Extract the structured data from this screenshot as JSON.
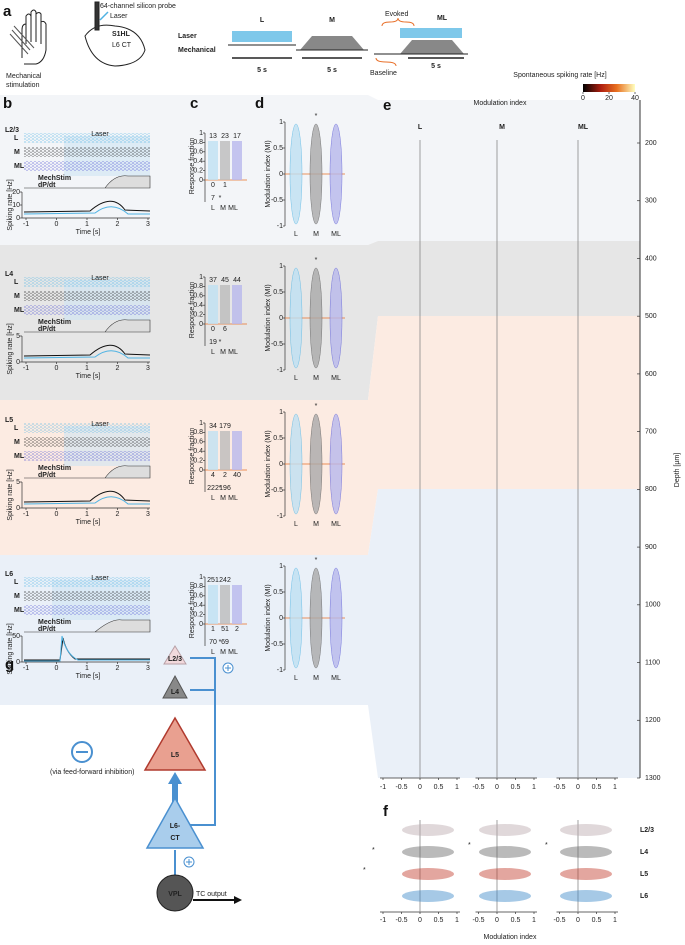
{
  "a": {
    "letter": "a",
    "stim": [
      "Mechanical",
      "stimulation"
    ],
    "probe": "64-channel silicon probe",
    "laser": "Laser",
    "area": "S1HL",
    "ct": "L6 CT",
    "legend": [
      "Laser",
      "Mechanical"
    ],
    "conditions": [
      "L",
      "M",
      "ML"
    ],
    "duration": "5 s",
    "evoked": "Evoked",
    "baseline": "Baseline"
  },
  "b": {
    "letter": "b",
    "layers": [
      "L2/3",
      "L4",
      "L5",
      "L6"
    ],
    "rows": [
      "L",
      "M",
      "ML"
    ],
    "laser": "Laser",
    "mech": "MechStim",
    "deriv": "dP/dt",
    "ylabel": "Spiking rate [Hz]",
    "yticks": [
      [
        20,
        10,
        0
      ],
      [
        5,
        0
      ],
      [
        5,
        0
      ],
      [
        50,
        0
      ]
    ],
    "xticks": [
      -1,
      0,
      1,
      2,
      3
    ],
    "xlabel": "Time [s]"
  },
  "c": {
    "letter": "c",
    "ylabel": "Response fraction",
    "yticks": [
      1,
      0.8,
      0.6,
      0.4,
      0.2,
      0
    ],
    "xlabels": [
      "L",
      "M",
      "ML"
    ],
    "star": "*",
    "layers": [
      {
        "up": [
          13,
          23,
          17
        ],
        "zero": [
          0,
          1
        ],
        "down": [
          7
        ]
      },
      {
        "up": [
          37,
          45,
          44
        ],
        "zero": [
          0,
          6
        ],
        "down": [
          19
        ]
      },
      {
        "up": [
          34,
          179
        ],
        "zero": [
          4,
          2,
          40
        ],
        "down": [
          222,
          196
        ]
      },
      {
        "up": [
          251,
          242
        ],
        "zero": [
          1,
          51,
          2
        ],
        "down": [
          70,
          69
        ]
      }
    ]
  },
  "d": {
    "letter": "d",
    "ylabel": "Modulation index (MI)",
    "yticks": [
      1,
      0.5,
      0,
      -0.5,
      -1
    ],
    "xlabels": [
      "L",
      "M",
      "ML"
    ],
    "star": "*"
  },
  "e": {
    "letter": "e",
    "title": "Modulation index",
    "cbar_title": "Spontaneous spiking rate [Hz]",
    "cbar_ticks": [
      0,
      20,
      40
    ],
    "columns": [
      "L",
      "M",
      "ML"
    ],
    "depth_ticks": [
      200,
      300,
      400,
      500,
      600,
      700,
      800,
      900,
      1000,
      1100,
      1200,
      1300
    ],
    "depth_label": "Depth [µm]",
    "xticks": [
      [
        -1,
        -0.5,
        0,
        0.5,
        1
      ],
      [
        -0.5,
        0,
        0.5,
        1
      ],
      [
        -0.5,
        0,
        0.5,
        1
      ]
    ]
  },
  "f": {
    "letter": "f",
    "layers": [
      "L2/3",
      "L4",
      "L5",
      "L6"
    ],
    "xlabel": "Modulation index",
    "star": "*",
    "xticks": [
      [
        -1,
        -0.5,
        0,
        0.5,
        1
      ],
      [
        -0.5,
        0,
        0.5,
        1
      ],
      [
        -0.5,
        0,
        0.5,
        1
      ]
    ]
  },
  "g": {
    "letter": "g",
    "nodes": [
      "L2/3",
      "L4",
      "L5",
      "L6-",
      "CT",
      "VPL"
    ],
    "note": "(via feed-forward inhibition)",
    "output": "TC output"
  }
}
